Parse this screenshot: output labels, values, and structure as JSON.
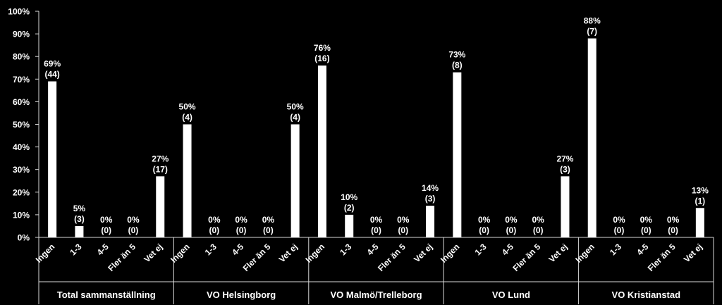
{
  "chart_data": {
    "type": "bar",
    "y_axis": {
      "ticks": [
        "0%",
        "10%",
        "20%",
        "30%",
        "40%",
        "50%",
        "60%",
        "70%",
        "80%",
        "90%",
        "100%"
      ],
      "ylim": [
        0,
        100
      ]
    },
    "categories": [
      "Ingen",
      "1-3",
      "4-5",
      "Fler än 5",
      "Vet ej"
    ],
    "groups": [
      {
        "name": "Total sammanställning",
        "values": [
          69,
          5,
          0,
          0,
          27
        ],
        "pct_labels": [
          "69%",
          "5%",
          "0%",
          "0%",
          "27%"
        ],
        "count_labels": [
          "(44)",
          "(3)",
          "(0)",
          "(0)",
          "(17)"
        ]
      },
      {
        "name": "VO Helsingborg",
        "values": [
          50,
          0,
          0,
          0,
          50
        ],
        "pct_labels": [
          "50%",
          "0%",
          "0%",
          "0%",
          "50%"
        ],
        "count_labels": [
          "(4)",
          "(0)",
          "(0)",
          "(0)",
          "(4)"
        ]
      },
      {
        "name": "VO Malmö/Trelleborg",
        "values": [
          76,
          10,
          0,
          0,
          14
        ],
        "pct_labels": [
          "76%",
          "10%",
          "0%",
          "0%",
          "14%"
        ],
        "count_labels": [
          "(16)",
          "(2)",
          "(0)",
          "(0)",
          "(3)"
        ]
      },
      {
        "name": "VO Lund",
        "values": [
          73,
          0,
          0,
          0,
          27
        ],
        "pct_labels": [
          "73%",
          "0%",
          "0%",
          "0%",
          "27%"
        ],
        "count_labels": [
          "(8)",
          "(0)",
          "(0)",
          "(0)",
          "(3)"
        ]
      },
      {
        "name": "VO Kristianstad",
        "values": [
          88,
          0,
          0,
          0,
          13
        ],
        "pct_labels": [
          "88%",
          "0%",
          "0%",
          "0%",
          "13%"
        ],
        "count_labels": [
          "(7)",
          "(0)",
          "(0)",
          "(0)",
          "(1)"
        ]
      }
    ],
    "colors": {
      "background": "#000000",
      "bar": "#ffffff",
      "text": "#ffffff",
      "axis": "#d9d9d9"
    },
    "grid": false,
    "legend": "none"
  }
}
